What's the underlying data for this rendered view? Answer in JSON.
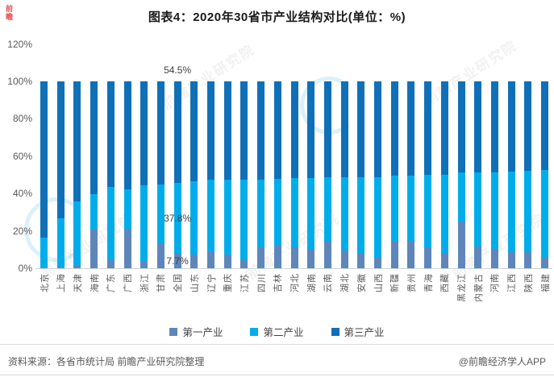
{
  "title": "图表4：2020年30省市产业结构对比(单位：%)",
  "brand_mark": "前瞻",
  "watermark": {
    "text": "前瞻产业研究院"
  },
  "chart_data": {
    "type": "bar",
    "stacked": true,
    "unit": "%",
    "title": "图表4：2020年30省市产业结构对比(单位：%)",
    "categories": [
      "北京",
      "上海",
      "天津",
      "海南",
      "广东",
      "广西",
      "浙江",
      "甘肃",
      "全国",
      "山东",
      "辽宁",
      "重庆",
      "江苏",
      "四川",
      "吉林",
      "河北",
      "湖南",
      "云南",
      "湖北",
      "安徽",
      "山西",
      "新疆",
      "贵州",
      "青海",
      "西藏",
      "黑龙江",
      "内蒙古",
      "河南",
      "江西",
      "陕西",
      "福建"
    ],
    "series": [
      {
        "name": "第一产业",
        "color": "#5e86ba",
        "values": [
          0.4,
          0.3,
          1.5,
          20.5,
          4.3,
          20.8,
          3.3,
          13.2,
          7.7,
          7.3,
          9.0,
          7.2,
          4.4,
          11.4,
          12.6,
          10.7,
          10.2,
          14.7,
          9.5,
          8.2,
          5.4,
          14.4,
          14.5,
          11.1,
          7.9,
          25.1,
          11.7,
          9.7,
          8.7,
          8.7,
          6.2
        ]
      },
      {
        "name": "第二产业",
        "color": "#00adea",
        "values": [
          15.8,
          26.6,
          34.1,
          19.1,
          39.2,
          21.6,
          40.9,
          31.7,
          37.8,
          39.1,
          38.3,
          40.0,
          43.1,
          36.2,
          35.2,
          37.6,
          37.9,
          33.8,
          39.0,
          40.5,
          43.5,
          35.2,
          35.1,
          39.1,
          42.2,
          26.2,
          39.6,
          41.6,
          43.2,
          43.4,
          46.3
        ]
      },
      {
        "name": "第三产业",
        "color": "#0f70b8",
        "values": [
          83.8,
          73.1,
          64.4,
          60.4,
          56.5,
          57.6,
          55.8,
          55.1,
          54.5,
          53.6,
          52.7,
          52.8,
          52.5,
          52.4,
          52.2,
          51.7,
          51.9,
          51.5,
          51.5,
          51.3,
          51.1,
          50.4,
          50.4,
          49.8,
          49.9,
          48.7,
          48.7,
          48.7,
          48.1,
          47.9,
          47.5
        ]
      }
    ],
    "y_axis": {
      "min": 0,
      "max": 120,
      "ticks": [
        "0%",
        "20%",
        "40%",
        "60%",
        "80%",
        "100%",
        "120%"
      ],
      "grid": false
    },
    "data_labels": {
      "category": "全国",
      "values": [
        "7.7%",
        "37.8%",
        "54.5%"
      ]
    },
    "legend_position": "bottom"
  },
  "footer": {
    "source": "资料来源：各省市统计局 前瞻产业研究院整理",
    "credit": "@前瞻经济学人APP"
  }
}
